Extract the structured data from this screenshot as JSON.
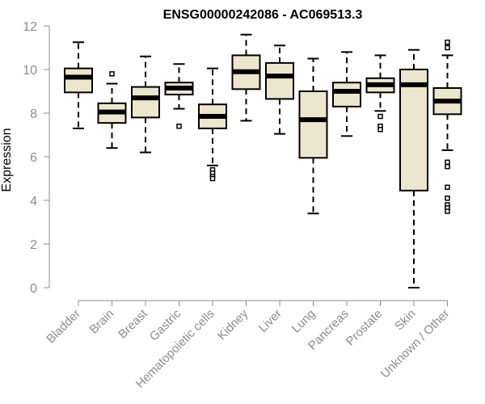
{
  "chart_data": {
    "type": "box",
    "title": "ENSG00000242086 - AC069513.3",
    "xlabel": "",
    "ylabel": "Expression",
    "ylim": [
      0,
      12
    ],
    "yticks": [
      "0",
      "2",
      "4",
      "6",
      "8",
      "10",
      "12"
    ],
    "grid": false,
    "categories": [
      "Bladder",
      "Brain",
      "Breast",
      "Gastric",
      "Hematopoietic cells",
      "Kidney",
      "Liver",
      "Lung",
      "Pancreas",
      "Prostate",
      "Skin",
      "Unknown / Other"
    ],
    "boxes": [
      {
        "min": 7.3,
        "q1": 8.95,
        "median": 9.65,
        "q3": 10.05,
        "max": 11.25,
        "outliers": []
      },
      {
        "min": 6.4,
        "q1": 7.55,
        "median": 8.05,
        "q3": 8.45,
        "max": 9.35,
        "outliers": [
          9.8
        ]
      },
      {
        "min": 6.2,
        "q1": 7.8,
        "median": 8.7,
        "q3": 9.2,
        "max": 10.6,
        "outliers": []
      },
      {
        "min": 8.2,
        "q1": 8.85,
        "median": 9.15,
        "q3": 9.4,
        "max": 10.25,
        "outliers": [
          7.4
        ]
      },
      {
        "min": 5.6,
        "q1": 7.3,
        "median": 7.85,
        "q3": 8.4,
        "max": 10.05,
        "outliers": [
          5.4,
          5.25,
          5.1,
          5.0
        ]
      },
      {
        "min": 7.65,
        "q1": 9.1,
        "median": 9.9,
        "q3": 10.65,
        "max": 11.6,
        "outliers": []
      },
      {
        "min": 7.05,
        "q1": 8.65,
        "median": 9.7,
        "q3": 10.3,
        "max": 11.1,
        "outliers": []
      },
      {
        "min": 3.4,
        "q1": 5.95,
        "median": 7.7,
        "q3": 9.0,
        "max": 10.5,
        "outliers": []
      },
      {
        "min": 6.95,
        "q1": 8.3,
        "median": 9.0,
        "q3": 9.4,
        "max": 10.8,
        "outliers": []
      },
      {
        "min": 8.1,
        "q1": 8.95,
        "median": 9.3,
        "q3": 9.6,
        "max": 10.65,
        "outliers": [
          7.85,
          7.4,
          7.25
        ]
      },
      {
        "min": 0.0,
        "q1": 4.45,
        "median": 9.3,
        "q3": 10.0,
        "max": 10.9,
        "outliers": []
      },
      {
        "min": 6.3,
        "q1": 7.95,
        "median": 8.55,
        "q3": 9.15,
        "max": 10.65,
        "outliers": [
          11.25,
          11.0,
          5.75,
          5.55,
          4.6,
          4.1,
          3.8,
          3.65,
          3.5
        ]
      }
    ],
    "colors": {
      "box_fill": "#ede6cf",
      "box_stroke": "#000000",
      "median": "#000000",
      "axis": "#8c8c8c",
      "axis_text": "#8c8c8c"
    }
  }
}
